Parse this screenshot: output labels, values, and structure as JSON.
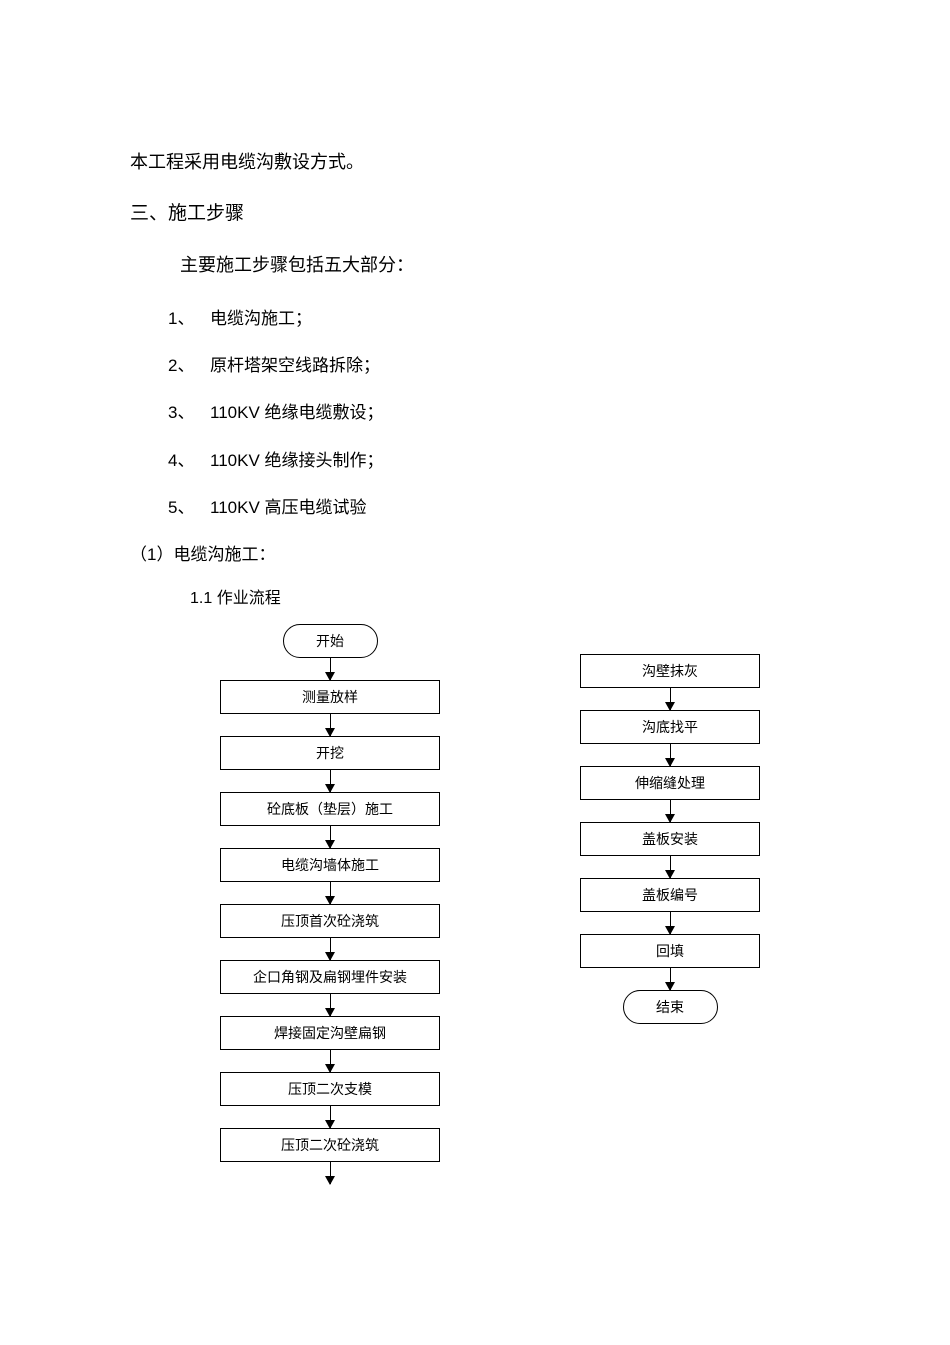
{
  "intro_para": "本工程采用电缆沟敷设方式。",
  "section_heading": "三、施工步骤",
  "section_sub": "主要施工步骤包括五大部分：",
  "steps": [
    {
      "num": "1、",
      "text": "电缆沟施工；"
    },
    {
      "num": "2、",
      "text": "原杆塔架空线路拆除；"
    },
    {
      "num": "3、",
      "text": "110KV 绝缘电缆敷设；"
    },
    {
      "num": "4、",
      "text": "110KV 绝缘接头制作；"
    },
    {
      "num": "5、",
      "text": "110KV 高压电缆试验"
    }
  ],
  "subsection_label": "（1）电缆沟施工：",
  "flow_title": "1.1 作业流程",
  "flow_left": [
    {
      "label": "开始",
      "terminal": true
    },
    {
      "label": "测量放样"
    },
    {
      "label": "开挖"
    },
    {
      "label": "砼底板（垫层）施工"
    },
    {
      "label": "电缆沟墙体施工"
    },
    {
      "label": "压顶首次砼浇筑"
    },
    {
      "label": "企口角钢及扁钢埋件安装"
    },
    {
      "label": "焊接固定沟壁扁钢"
    },
    {
      "label": "压顶二次支模"
    },
    {
      "label": "压顶二次砼浇筑"
    }
  ],
  "flow_right": [
    {
      "label": "沟壁抹灰"
    },
    {
      "label": "沟底找平"
    },
    {
      "label": "伸缩缝处理"
    },
    {
      "label": "盖板安装"
    },
    {
      "label": "盖板编号"
    },
    {
      "label": "回填"
    },
    {
      "label": "结束",
      "terminal": true
    }
  ]
}
